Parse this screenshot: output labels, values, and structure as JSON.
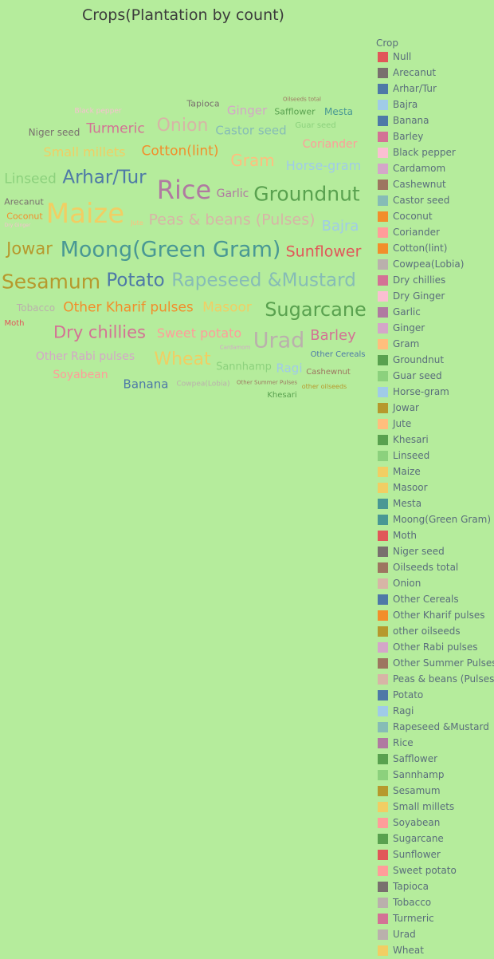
{
  "title": "Crops(Plantation by count)",
  "legend": {
    "title": "Crop",
    "items": [
      {
        "label": "Null",
        "color": "#e15759"
      },
      {
        "label": "Arecanut",
        "color": "#79706e"
      },
      {
        "label": "Arhar/Tur",
        "color": "#4e79a7"
      },
      {
        "label": "Bajra",
        "color": "#a0cbe8"
      },
      {
        "label": "Banana",
        "color": "#4e79a7"
      },
      {
        "label": "Barley",
        "color": "#d37295"
      },
      {
        "label": "Black pepper",
        "color": "#fabfd2"
      },
      {
        "label": "Cardamom",
        "color": "#d4a6c8"
      },
      {
        "label": "Cashewnut",
        "color": "#9d7660"
      },
      {
        "label": "Castor seed",
        "color": "#86bcb6"
      },
      {
        "label": "Coconut",
        "color": "#f28e2b"
      },
      {
        "label": "Coriander",
        "color": "#ff9d9a"
      },
      {
        "label": "Cotton(lint)",
        "color": "#f28e2b"
      },
      {
        "label": "Cowpea(Lobia)",
        "color": "#bab0ac"
      },
      {
        "label": "Dry chillies",
        "color": "#d37295"
      },
      {
        "label": "Dry Ginger",
        "color": "#fabfd2"
      },
      {
        "label": "Garlic",
        "color": "#b07aa1"
      },
      {
        "label": "Ginger",
        "color": "#d4a6c8"
      },
      {
        "label": "Gram",
        "color": "#ffbe7d"
      },
      {
        "label": "Groundnut",
        "color": "#59a14f"
      },
      {
        "label": "Guar seed",
        "color": "#8cd17d"
      },
      {
        "label": "Horse-gram",
        "color": "#a0cbe8"
      },
      {
        "label": "Jowar",
        "color": "#b6992d"
      },
      {
        "label": "Jute",
        "color": "#ffbe7d"
      },
      {
        "label": "Khesari",
        "color": "#59a14f"
      },
      {
        "label": "Linseed",
        "color": "#8cd17d"
      },
      {
        "label": "Maize",
        "color": "#f1ce63"
      },
      {
        "label": "Masoor",
        "color": "#f1ce63"
      },
      {
        "label": "Mesta",
        "color": "#499894"
      },
      {
        "label": "Moong(Green Gram)",
        "color": "#499894"
      },
      {
        "label": "Moth",
        "color": "#e15759"
      },
      {
        "label": "Niger seed",
        "color": "#79706e"
      },
      {
        "label": "Oilseeds total",
        "color": "#9d7660"
      },
      {
        "label": "Onion",
        "color": "#d7b5a6"
      },
      {
        "label": "Other Cereals",
        "color": "#4e79a7"
      },
      {
        "label": "Other Kharif pulses",
        "color": "#f28e2b"
      },
      {
        "label": "other oilseeds",
        "color": "#b6992d"
      },
      {
        "label": "Other Rabi pulses",
        "color": "#d4a6c8"
      },
      {
        "label": "Other Summer Pulses",
        "color": "#9d7660"
      },
      {
        "label": "Peas & beans (Pulses)",
        "color": "#d7b5a6"
      },
      {
        "label": "Potato",
        "color": "#4e79a7"
      },
      {
        "label": "Ragi",
        "color": "#a0cbe8"
      },
      {
        "label": "Rapeseed &Mustard",
        "color": "#86bcb6"
      },
      {
        "label": "Rice",
        "color": "#b07aa1"
      },
      {
        "label": "Safflower",
        "color": "#59a14f"
      },
      {
        "label": "Sannhamp",
        "color": "#8cd17d"
      },
      {
        "label": "Sesamum",
        "color": "#b6992d"
      },
      {
        "label": "Small millets",
        "color": "#f1ce63"
      },
      {
        "label": "Soyabean",
        "color": "#ff9d9a"
      },
      {
        "label": "Sugarcane",
        "color": "#59a14f"
      },
      {
        "label": "Sunflower",
        "color": "#e15759"
      },
      {
        "label": "Sweet potato",
        "color": "#ff9d9a"
      },
      {
        "label": "Tapioca",
        "color": "#79706e"
      },
      {
        "label": "Tobacco",
        "color": "#bab0ac"
      },
      {
        "label": "Turmeric",
        "color": "#d37295"
      },
      {
        "label": "Urad",
        "color": "#bab0ac"
      },
      {
        "label": "Wheat",
        "color": "#f1ce63"
      }
    ]
  },
  "chart_data": {
    "type": "wordcloud",
    "title": "Crops(Plantation by count)",
    "legend_title": "Crop",
    "legend_position": "right",
    "words": [
      {
        "text": "Maize",
        "color": "#f1ce63"
      },
      {
        "text": "Rice",
        "color": "#b07aa1"
      },
      {
        "text": "Moong(Green Gram)",
        "color": "#499894"
      },
      {
        "text": "Groundnut",
        "color": "#59a14f"
      },
      {
        "text": "Sesamum",
        "color": "#b6992d"
      },
      {
        "text": "Sugarcane",
        "color": "#59a14f"
      },
      {
        "text": "Urad",
        "color": "#bab0ac"
      },
      {
        "text": "Arhar/Tur",
        "color": "#4e79a7"
      },
      {
        "text": "Rapeseed &Mustard",
        "color": "#86bcb6"
      },
      {
        "text": "Potato",
        "color": "#4e79a7"
      },
      {
        "text": "Jowar",
        "color": "#b6992d"
      },
      {
        "text": "Onion",
        "color": "#d7b5a6"
      },
      {
        "text": "Wheat",
        "color": "#f1ce63"
      },
      {
        "text": "Dry chillies",
        "color": "#d37295"
      },
      {
        "text": "Peas & beans (Pulses)",
        "color": "#d7b5a6"
      },
      {
        "text": "Sunflower",
        "color": "#e15759"
      },
      {
        "text": "Gram",
        "color": "#ffbe7d"
      },
      {
        "text": "Barley",
        "color": "#d37295"
      },
      {
        "text": "Bajra",
        "color": "#a0cbe8"
      },
      {
        "text": "Turmeric",
        "color": "#d37295"
      },
      {
        "text": "Cotton(lint)",
        "color": "#f28e2b"
      },
      {
        "text": "Other Kharif pulses",
        "color": "#f28e2b"
      },
      {
        "text": "Masoor",
        "color": "#f1ce63"
      },
      {
        "text": "Linseed",
        "color": "#8cd17d"
      },
      {
        "text": "Small millets",
        "color": "#f1ce63"
      },
      {
        "text": "Horse-gram",
        "color": "#a0cbe8"
      },
      {
        "text": "Sweet potato",
        "color": "#ff9d9a"
      },
      {
        "text": "Castor seed",
        "color": "#86bcb6"
      },
      {
        "text": "Ginger",
        "color": "#d4a6c8"
      },
      {
        "text": "Garlic",
        "color": "#b07aa1"
      },
      {
        "text": "Banana",
        "color": "#4e79a7"
      },
      {
        "text": "Coriander",
        "color": "#ff9d9a"
      },
      {
        "text": "Other Rabi pulses",
        "color": "#d4a6c8"
      },
      {
        "text": "Soyabean",
        "color": "#ff9d9a"
      },
      {
        "text": "Sannhamp",
        "color": "#8cd17d"
      },
      {
        "text": "Ragi",
        "color": "#a0cbe8"
      },
      {
        "text": "Niger seed",
        "color": "#79706e"
      },
      {
        "text": "Tobacco",
        "color": "#bab0ac"
      },
      {
        "text": "Mesta",
        "color": "#499894"
      },
      {
        "text": "Tapioca",
        "color": "#79706e"
      },
      {
        "text": "Coconut",
        "color": "#f28e2b"
      },
      {
        "text": "Arecanut",
        "color": "#79706e"
      },
      {
        "text": "Safflower",
        "color": "#59a14f"
      },
      {
        "text": "Moth",
        "color": "#e15759"
      },
      {
        "text": "Other Cereals",
        "color": "#4e79a7"
      },
      {
        "text": "Cashewnut",
        "color": "#9d7660"
      },
      {
        "text": "Guar seed",
        "color": "#8cd17d"
      },
      {
        "text": "Khesari",
        "color": "#59a14f"
      },
      {
        "text": "Cowpea(Lobia)",
        "color": "#bab0ac"
      },
      {
        "text": "other oilseeds",
        "color": "#b6992d"
      },
      {
        "text": "Other Summer Pulses",
        "color": "#9d7660"
      },
      {
        "text": "Oilseeds total",
        "color": "#9d7660"
      },
      {
        "text": "Black pepper",
        "color": "#fabfd2"
      },
      {
        "text": "Cardamom",
        "color": "#d4a6c8"
      },
      {
        "text": "Jute",
        "color": "#ffbe7d"
      },
      {
        "text": "Dry Ginger",
        "color": "#fabfd2"
      }
    ]
  }
}
